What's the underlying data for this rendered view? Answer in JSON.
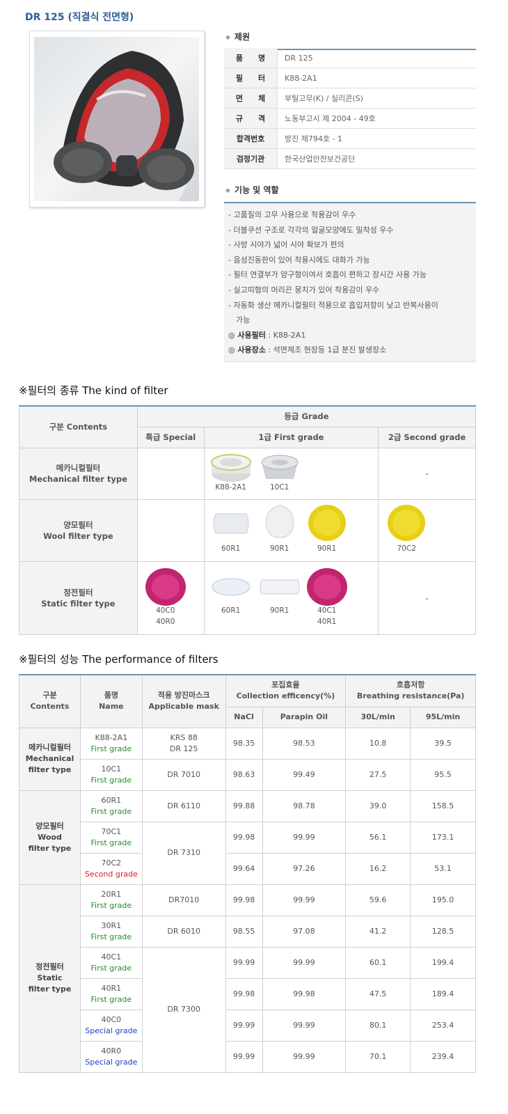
{
  "product": {
    "title": "DR 125 (직결식 전면형)"
  },
  "specs": {
    "heading": "제원",
    "rows": [
      {
        "key": "품　　명",
        "value": "DR 125"
      },
      {
        "key": "필　　터",
        "value": "K88-2A1"
      },
      {
        "key": "면　　체",
        "value": "부틸고무(K) / 실리콘(S)"
      },
      {
        "key": "규　　격",
        "value": "노동부고시 제 2004 - 49호"
      },
      {
        "key": "합격번호",
        "value": "방진 제794호 - 1"
      },
      {
        "key": "검정기관",
        "value": "한국산업안전보건공단"
      }
    ]
  },
  "functions": {
    "heading": "기능 및 역할",
    "items": [
      "- 고품질의 고무 사용으로 착용감이 우수",
      "- 더블쿠션 구조로 각각의 얼굴모양에도 밀착성 우수",
      "- 사방 시야가 넓어 시야 확보가 편의",
      "- 음성진동판이 있어 착용시에도 대화가 가능",
      "- 필터 연결부가 양구형이여서 호흡이 편하고 장시간 사용 가능",
      "- 실고띠형의 머리끈 뭉치가 있어 착용감이 우수",
      "- 자동화 생산 메카니컬필터 적용으로 흡입저항이 낮고 반복사용이"
    ],
    "item_cont": "가능",
    "use_filter_label": "◎ 사용필터",
    "use_filter_value": " : K88-2A1",
    "use_place_label": "◎ 사용장소",
    "use_place_value": " : 석면제조 현장등 1급 분진 발생장소"
  },
  "kind": {
    "title": "※필터의 종류 The kind of filter",
    "header_contents": "구분 Contents",
    "header_grade": "등급 Grade",
    "col_special": "특급 Special",
    "col_first": "1급 First grade",
    "col_second": "2급 Second grade",
    "rows": [
      {
        "ko": "메카니컬필터",
        "en": "Mechanical filter type",
        "special": [],
        "first": [
          "K88-2A1",
          "10C1"
        ],
        "second": "-"
      },
      {
        "ko": "양모필터",
        "en": "Wool filter type",
        "special": [],
        "first": [
          "60R1",
          "90R1",
          "90R1"
        ],
        "second": "70C2"
      },
      {
        "ko": "정전필터",
        "en": "Static filter type",
        "special": [
          "40C0",
          "40R0"
        ],
        "first": [
          "60R1",
          "90R1",
          "40C1",
          "40R1"
        ],
        "second": "-"
      }
    ]
  },
  "perf": {
    "title": "※필터의 성능 The performance of filters",
    "h_contents_ko": "구분",
    "h_contents_en": "Contents",
    "h_name_ko": "품명",
    "h_name_en": "Name",
    "h_mask_ko": "적용 방진마스크",
    "h_mask_en": "Applicable mask",
    "h_coll_ko": "포집효율",
    "h_coll_en": "Collection efficency(%)",
    "h_breath_ko": "호흡저항",
    "h_breath_en": "Breathing resistance(Pa)",
    "h_nacl": "NaCl",
    "h_oil": "Parapin Oil",
    "h_30": "30L/min",
    "h_95": "95L/min",
    "groups": [
      {
        "ko": "메카니컬필터",
        "en1": "Mechanical",
        "en2": "filter type"
      },
      {
        "ko": "양모필터",
        "en1": "Wood",
        "en2": "filter type"
      },
      {
        "ko": "정전필터",
        "en1": "Static",
        "en2": "filter type"
      }
    ],
    "rows": [
      {
        "name": "K88-2A1",
        "grade": "First grade",
        "mask": "KRS 88",
        "mask2": "DR 125",
        "nacl": "98.35",
        "oil": "98.53",
        "r30": "10.8",
        "r95": "39.5"
      },
      {
        "name": "10C1",
        "grade": "First grade",
        "mask": "DR 7010",
        "nacl": "98.63",
        "oil": "99.49",
        "r30": "27.5",
        "r95": "95.5"
      },
      {
        "name": "60R1",
        "grade": "First grade",
        "mask": "DR 6110",
        "nacl": "99.88",
        "oil": "98.78",
        "r30": "39.0",
        "r95": "158.5"
      },
      {
        "name": "70C1",
        "grade": "First grade",
        "mask": "DR 7310",
        "nacl": "99.98",
        "oil": "99.99",
        "r30": "56.1",
        "r95": "173.1"
      },
      {
        "name": "70C2",
        "grade": "Second grade",
        "nacl": "99.64",
        "oil": "97.26",
        "r30": "16.2",
        "r95": "53.1"
      },
      {
        "name": "20R1",
        "grade": "First grade",
        "mask": "DR7010",
        "nacl": "99.98",
        "oil": "99.99",
        "r30": "59.6",
        "r95": "195.0"
      },
      {
        "name": "30R1",
        "grade": "First grade",
        "mask": "DR 6010",
        "nacl": "98.55",
        "oil": "97.08",
        "r30": "41.2",
        "r95": "128.5"
      },
      {
        "name": "40C1",
        "grade": "First grade",
        "mask": "DR 7300",
        "nacl": "99.99",
        "oil": "99.99",
        "r30": "60.1",
        "r95": "199.4"
      },
      {
        "name": "40R1",
        "grade": "First grade",
        "nacl": "99.98",
        "oil": "99.98",
        "r30": "47.5",
        "r95": "189.4"
      },
      {
        "name": "40C0",
        "grade": "Special grade",
        "nacl": "99.99",
        "oil": "99.99",
        "r30": "80.1",
        "r95": "253.4"
      },
      {
        "name": "40R0",
        "grade": "Special grade",
        "nacl": "99.99",
        "oil": "99.99",
        "r30": "70.1",
        "r95": "239.4"
      }
    ]
  },
  "colors": {
    "accent_line": "#6c94b3",
    "title_blue": "#2f5f95",
    "first_grade": "#2a8a2a",
    "second_grade": "#d02020",
    "special_grade": "#2040c0"
  }
}
